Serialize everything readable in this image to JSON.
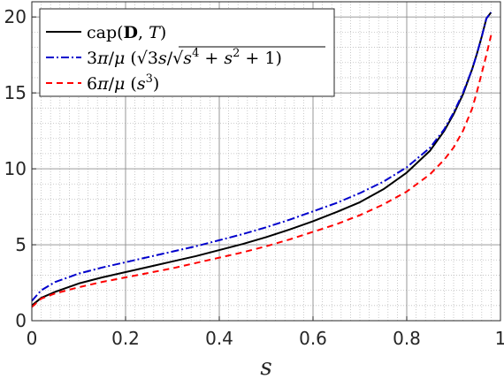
{
  "chart_data": {
    "type": "line",
    "xlabel": "s",
    "ylabel": "",
    "title": "",
    "xlim": [
      0,
      1
    ],
    "ylim": [
      0,
      21
    ],
    "x_ticks": [
      "0",
      "0.2",
      "0.4",
      "0.6",
      "0.8",
      "1"
    ],
    "y_ticks": [
      "0",
      "5",
      "10",
      "15",
      "20"
    ],
    "grid": true,
    "minor_grid": true,
    "legend_position": "top-left",
    "series": [
      {
        "name": "cap(D,T)",
        "color": "#000000",
        "dash": "solid",
        "x": [
          0,
          0.02,
          0.05,
          0.1,
          0.15,
          0.2,
          0.25,
          0.3,
          0.35,
          0.4,
          0.45,
          0.5,
          0.55,
          0.6,
          0.65,
          0.7,
          0.75,
          0.8,
          0.85,
          0.88,
          0.9,
          0.92,
          0.94,
          0.95,
          0.96,
          0.97,
          0.98
        ],
        "y": [
          1.0,
          1.5,
          1.9,
          2.45,
          2.85,
          3.2,
          3.55,
          3.9,
          4.25,
          4.65,
          5.05,
          5.5,
          6.0,
          6.55,
          7.15,
          7.8,
          8.65,
          9.75,
          11.2,
          12.5,
          13.6,
          14.9,
          16.6,
          17.6,
          18.7,
          19.9,
          20.3
        ]
      },
      {
        "name": "3π/μ (√3s/√(s⁴+s²+1))",
        "color": "#0000cc",
        "dash": "dashdot",
        "x": [
          0,
          0.02,
          0.05,
          0.1,
          0.15,
          0.2,
          0.25,
          0.3,
          0.35,
          0.4,
          0.45,
          0.5,
          0.55,
          0.6,
          0.65,
          0.7,
          0.75,
          0.8,
          0.85,
          0.88,
          0.9,
          0.92,
          0.94,
          0.95,
          0.96,
          0.97,
          0.98
        ],
        "y": [
          1.3,
          2.0,
          2.55,
          3.1,
          3.5,
          3.85,
          4.2,
          4.55,
          4.9,
          5.3,
          5.7,
          6.15,
          6.65,
          7.2,
          7.75,
          8.4,
          9.15,
          10.1,
          11.4,
          12.6,
          13.7,
          15.0,
          16.6,
          17.6,
          18.7,
          19.9,
          20.3
        ]
      },
      {
        "name": "6π/μ (s³)",
        "color": "#ff0000",
        "dash": "dashed",
        "x": [
          0,
          0.02,
          0.05,
          0.1,
          0.15,
          0.2,
          0.25,
          0.3,
          0.35,
          0.4,
          0.45,
          0.5,
          0.55,
          0.6,
          0.65,
          0.7,
          0.75,
          0.8,
          0.85,
          0.88,
          0.9,
          0.92,
          0.94,
          0.95,
          0.96,
          0.97,
          0.98
        ],
        "y": [
          0.9,
          1.45,
          1.8,
          2.2,
          2.55,
          2.85,
          3.15,
          3.45,
          3.8,
          4.15,
          4.5,
          4.9,
          5.35,
          5.85,
          6.35,
          6.95,
          7.65,
          8.5,
          9.65,
          10.6,
          11.4,
          12.5,
          14.0,
          15.1,
          16.3,
          17.5,
          18.8
        ]
      }
    ]
  }
}
